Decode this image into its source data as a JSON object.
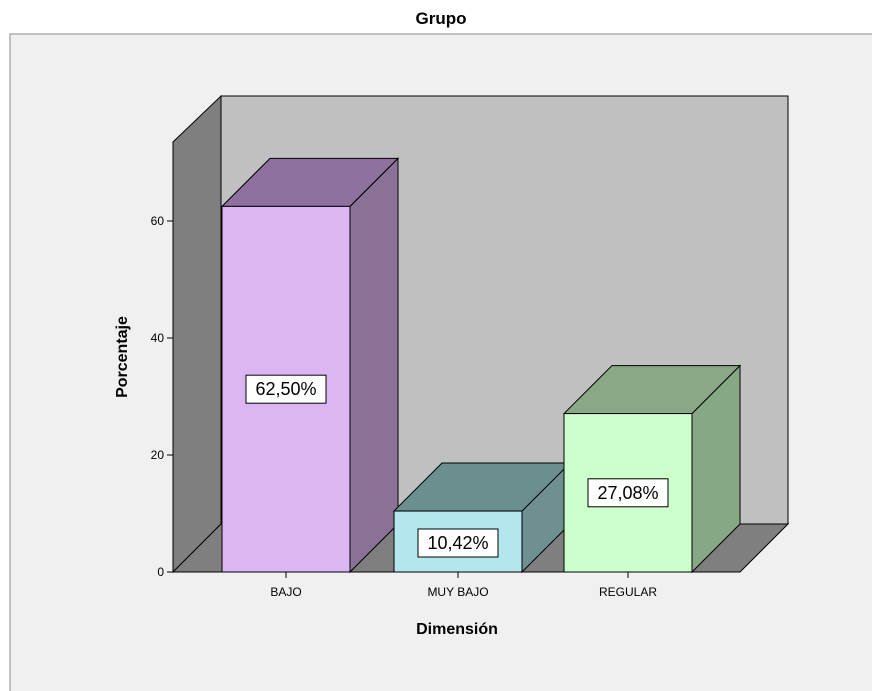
{
  "chart_data": {
    "type": "bar",
    "title": "Grupo",
    "xlabel": "Dimensión",
    "ylabel": "Porcentaje",
    "categories": [
      "BAJO",
      "MUY BAJO",
      "REGULAR"
    ],
    "values": [
      62.5,
      10.42,
      27.08
    ],
    "data_labels": [
      "62,50%",
      "10,42%",
      "27,08%"
    ],
    "ylim": [
      0,
      70
    ],
    "yticks": [
      "0",
      "20",
      "40",
      "60"
    ],
    "three_d": true,
    "grid": false,
    "legend": "none",
    "colors": {
      "bars": [
        "#dcb6f3",
        "#b3e6ee",
        "#ccffcc"
      ],
      "bars_side": [
        "#8b7398",
        "#6e9090",
        "#87a885"
      ],
      "bars_top": [
        "#8e719f",
        "#6b8e8e",
        "#88a886"
      ],
      "back_wall": "#c0c0c0",
      "side_wall": "#7f7f7f",
      "floor": "#7f7f7f",
      "plot_bg": "#f0f0f0"
    }
  }
}
